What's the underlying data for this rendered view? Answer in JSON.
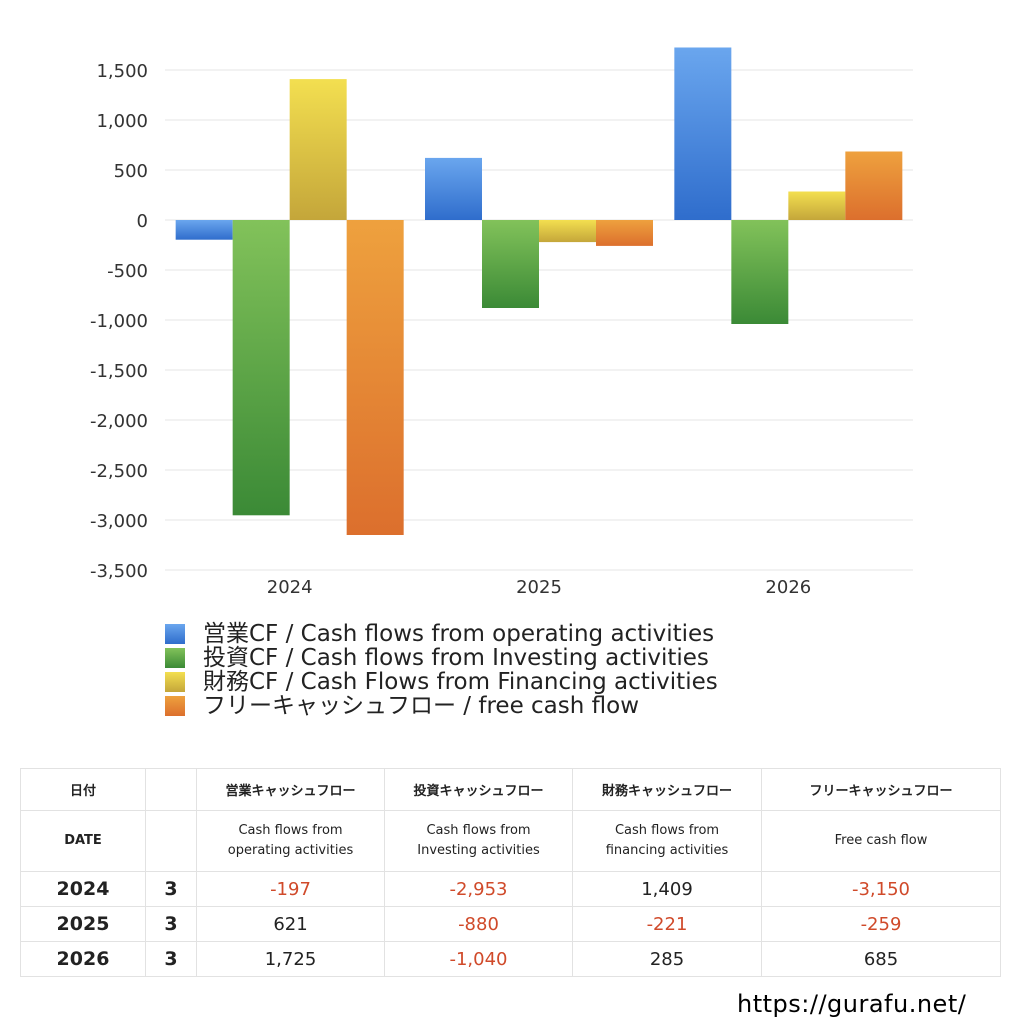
{
  "chart_data": {
    "type": "bar",
    "categories": [
      "2024",
      "2025",
      "2026"
    ],
    "series": [
      {
        "name": "営業CF / Cash flows from operating activities",
        "values": [
          -197,
          621,
          1725
        ],
        "color_top": "#6aa6ee",
        "color_bottom": "#2f6dcc"
      },
      {
        "name": "投資CF / Cash flows from Investing activities",
        "values": [
          -2953,
          -880,
          -1040
        ],
        "color_top": "#82c25a",
        "color_bottom": "#3b8a36"
      },
      {
        "name": "財務CF / Cash Flows from Financing activities",
        "values": [
          1409,
          -221,
          285
        ],
        "color_top": "#f3df50",
        "color_bottom": "#c4a63a"
      },
      {
        "name": "フリーキャッシュフロー / free cash flow",
        "values": [
          -3150,
          -259,
          685
        ],
        "color_top": "#eea13e",
        "color_bottom": "#dc6f2d"
      }
    ],
    "ylim": [
      -3500,
      1500
    ],
    "yticks": [
      "1,500",
      "1,000",
      "500",
      "0",
      "-500",
      "-1,000",
      "-1,500",
      "-2,000",
      "-2,500",
      "-3,000",
      "-3,500"
    ],
    "ytick_values": [
      1500,
      1000,
      500,
      0,
      -500,
      -1000,
      -1500,
      -2000,
      -2500,
      -3000,
      -3500
    ],
    "legend_position": "bottom-left",
    "grid": true
  },
  "table": {
    "headers_ja": [
      "日付",
      "",
      "営業キャッシュフロー",
      "投資キャッシュフロー",
      "財務キャッシュフロー",
      "フリーキャッシュフロー"
    ],
    "headers_en": [
      "DATE",
      "",
      "Cash flows from\noperating activities",
      "Cash flows from\nInvesting activities",
      "Cash flows from\nfinancing activities",
      "Free cash flow"
    ],
    "rows": [
      {
        "year": "2024",
        "month": "3",
        "operating": "-197",
        "investing": "-2,953",
        "financing": "1,409",
        "free": "-3,150"
      },
      {
        "year": "2025",
        "month": "3",
        "operating": "621",
        "investing": "-880",
        "financing": "-221",
        "free": "-259"
      },
      {
        "year": "2026",
        "month": "3",
        "operating": "1,725",
        "investing": "-1,040",
        "financing": "285",
        "free": "685"
      }
    ]
  },
  "site_url": "https://gurafu.net/"
}
